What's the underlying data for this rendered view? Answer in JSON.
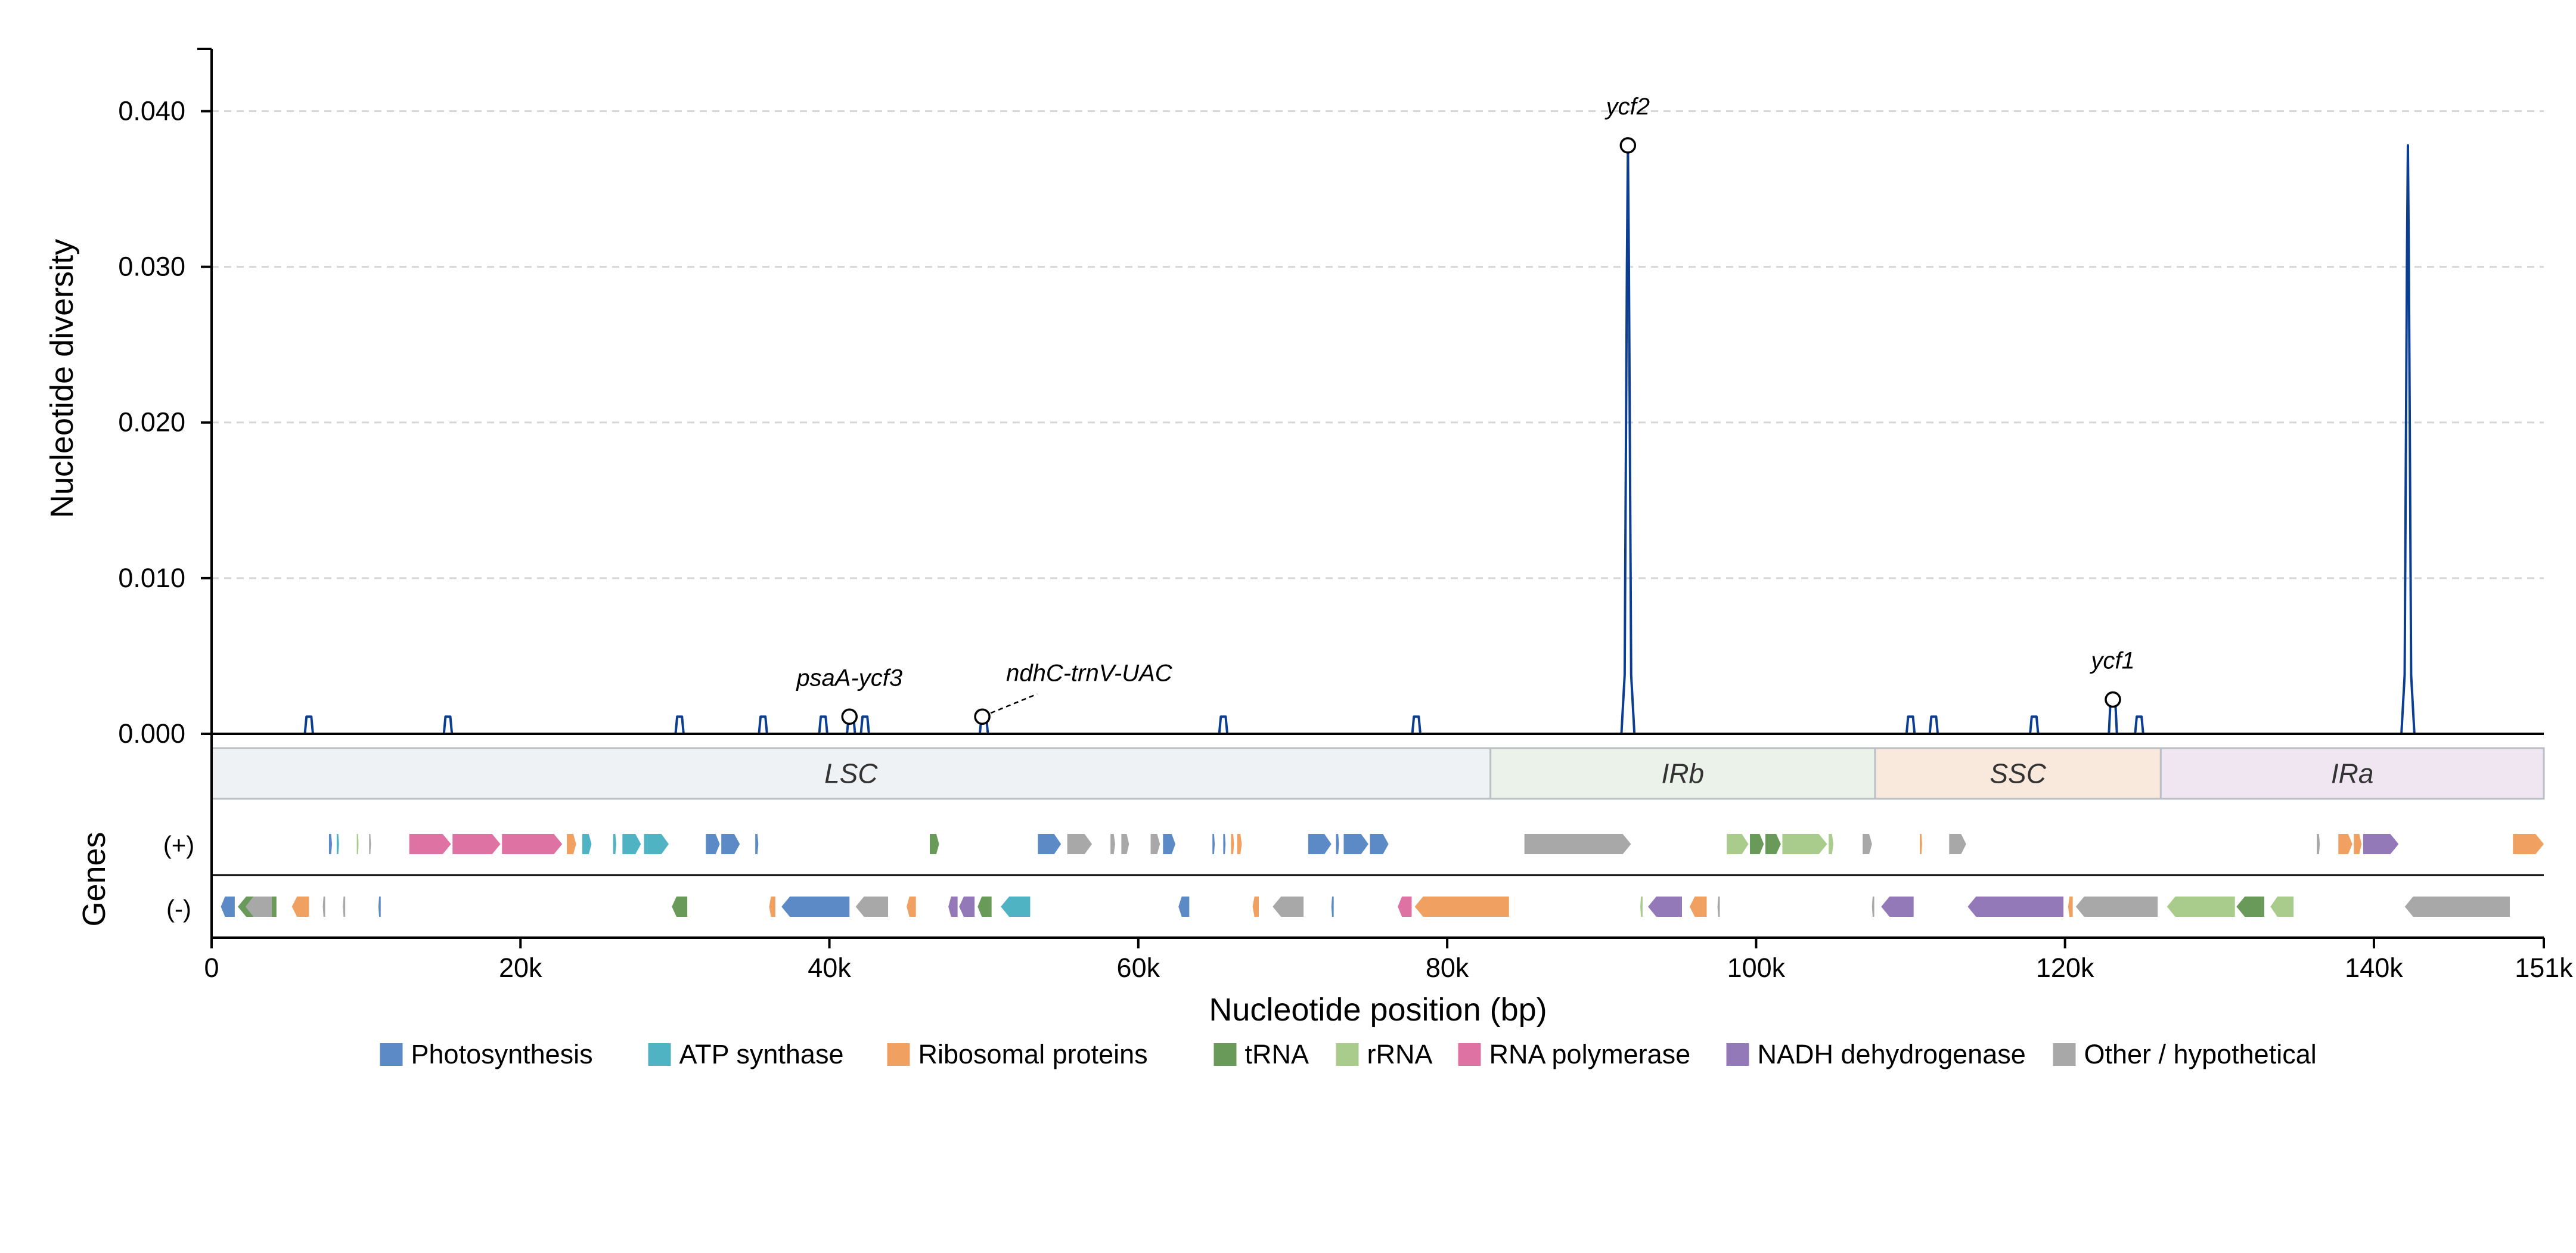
{
  "chart_data": {
    "type": "line",
    "xlabel": "Nucleotide position (bp)",
    "ylabel": "Nucleotide diversity",
    "genes_label": "Genes",
    "strand_labels": [
      "(+)",
      "(-)"
    ],
    "xlim": [
      0,
      151000
    ],
    "ylim": [
      0,
      0.044
    ],
    "x_ticks": [
      {
        "value": 0,
        "label": "0"
      },
      {
        "value": 20000,
        "label": "20k"
      },
      {
        "value": 40000,
        "label": "40k"
      },
      {
        "value": 60000,
        "label": "60k"
      },
      {
        "value": 80000,
        "label": "80k"
      },
      {
        "value": 100000,
        "label": "100k"
      },
      {
        "value": 120000,
        "label": "120k"
      },
      {
        "value": 140000,
        "label": "140k"
      },
      {
        "value": 151000,
        "label": "151k"
      }
    ],
    "y_ticks": [
      {
        "value": 0.0,
        "label": "0.000"
      },
      {
        "value": 0.01,
        "label": "0.010"
      },
      {
        "value": 0.02,
        "label": "0.020"
      },
      {
        "value": 0.03,
        "label": "0.030"
      },
      {
        "value": 0.04,
        "label": "0.040"
      }
    ],
    "grid": "y-dashed",
    "series": [
      {
        "color": "#0b3d91",
        "peaks": [
          {
            "x": 6300,
            "y": 0.0011
          },
          {
            "x": 15300,
            "y": 0.0011
          },
          {
            "x": 30300,
            "y": 0.0011
          },
          {
            "x": 35700,
            "y": 0.0011
          },
          {
            "x": 39600,
            "y": 0.0011
          },
          {
            "x": 41400,
            "y": 0.0011
          },
          {
            "x": 42300,
            "y": 0.0011
          },
          {
            "x": 50000,
            "y": 0.0011
          },
          {
            "x": 65500,
            "y": 0.0011
          },
          {
            "x": 78000,
            "y": 0.0011
          },
          {
            "x": 91700,
            "y": 0.0378
          },
          {
            "x": 110000,
            "y": 0.0011
          },
          {
            "x": 111500,
            "y": 0.0011
          },
          {
            "x": 118000,
            "y": 0.0011
          },
          {
            "x": 123100,
            "y": 0.0021
          },
          {
            "x": 124800,
            "y": 0.0011
          },
          {
            "x": 142200,
            "y": 0.0378
          }
        ]
      }
    ],
    "annotations": [
      {
        "label": "ycf2",
        "x": 91700,
        "y": 0.0378
      },
      {
        "label": "psaA-ycf3",
        "x": 41300,
        "y": 0.0011
      },
      {
        "label": "ndhC-trnV-UAC",
        "x": 49900,
        "y": 0.0011
      },
      {
        "label": "ycf1",
        "x": 123100,
        "y": 0.0022
      }
    ],
    "regions": [
      {
        "label": "LSC",
        "start": 0,
        "end": 82800,
        "color": "#eef2f5"
      },
      {
        "label": "IRb",
        "start": 82800,
        "end": 107700,
        "color": "#ebf2ea"
      },
      {
        "label": "SSC",
        "start": 107700,
        "end": 126200,
        "color": "#f8e9dc"
      },
      {
        "label": "IRa",
        "start": 126200,
        "end": 151000,
        "color": "#efe6f1"
      }
    ],
    "gene_categories": [
      {
        "key": "photo",
        "label": "Photosynthesis",
        "color": "#5b8ac6"
      },
      {
        "key": "atp",
        "label": "ATP synthase",
        "color": "#4fb3c4"
      },
      {
        "key": "ribo",
        "label": "Ribosomal proteins",
        "color": "#f0a060"
      },
      {
        "key": "trna",
        "label": "tRNA",
        "color": "#6a9a5a"
      },
      {
        "key": "rrna",
        "label": "rRNA",
        "color": "#a9cc8d"
      },
      {
        "key": "rnapol",
        "label": "RNA polymerase",
        "color": "#de72a3"
      },
      {
        "key": "ndh",
        "label": "NADH dehydrogenase",
        "color": "#9479b9"
      },
      {
        "key": "other",
        "label": "Other / hypothetical",
        "color": "#a8a8a8"
      }
    ],
    "genes_plus": [
      {
        "s": 7600,
        "e": 7800,
        "c": "photo"
      },
      {
        "s": 8100,
        "e": 8250,
        "c": "atp"
      },
      {
        "s": 9400,
        "e": 9500,
        "c": "rrna"
      },
      {
        "s": 10200,
        "e": 10300,
        "c": "other"
      },
      {
        "s": 12800,
        "e": 15500,
        "c": "rnapol"
      },
      {
        "s": 15600,
        "e": 18700,
        "c": "rnapol"
      },
      {
        "s": 18800,
        "e": 22700,
        "c": "rnapol"
      },
      {
        "s": 23000,
        "e": 23600,
        "c": "ribo"
      },
      {
        "s": 24000,
        "e": 24600,
        "c": "atp"
      },
      {
        "s": 26000,
        "e": 26200,
        "c": "atp"
      },
      {
        "s": 26600,
        "e": 27800,
        "c": "atp"
      },
      {
        "s": 28000,
        "e": 29600,
        "c": "atp"
      },
      {
        "s": 32000,
        "e": 32900,
        "c": "photo"
      },
      {
        "s": 33000,
        "e": 34200,
        "c": "photo"
      },
      {
        "s": 35200,
        "e": 35400,
        "c": "photo"
      },
      {
        "s": 46500,
        "e": 47100,
        "c": "trna"
      },
      {
        "s": 53500,
        "e": 55000,
        "c": "photo"
      },
      {
        "s": 55400,
        "e": 57000,
        "c": "other"
      },
      {
        "s": 58200,
        "e": 58500,
        "c": "other"
      },
      {
        "s": 58900,
        "e": 59400,
        "c": "other"
      },
      {
        "s": 60800,
        "e": 61400,
        "c": "other"
      },
      {
        "s": 61600,
        "e": 62400,
        "c": "photo"
      },
      {
        "s": 64800,
        "e": 64950,
        "c": "photo"
      },
      {
        "s": 65500,
        "e": 65650,
        "c": "photo"
      },
      {
        "s": 66000,
        "e": 66200,
        "c": "ribo"
      },
      {
        "s": 66400,
        "e": 66700,
        "c": "ribo"
      },
      {
        "s": 71000,
        "e": 72500,
        "c": "photo"
      },
      {
        "s": 72800,
        "e": 73000,
        "c": "photo"
      },
      {
        "s": 73300,
        "e": 74900,
        "c": "photo"
      },
      {
        "s": 75000,
        "e": 76200,
        "c": "photo"
      },
      {
        "s": 85000,
        "e": 91900,
        "c": "other"
      },
      {
        "s": 98100,
        "e": 99500,
        "c": "rrna"
      },
      {
        "s": 99600,
        "e": 100500,
        "c": "trna"
      },
      {
        "s": 100600,
        "e": 101600,
        "c": "trna"
      },
      {
        "s": 101700,
        "e": 104600,
        "c": "rrna"
      },
      {
        "s": 104700,
        "e": 105000,
        "c": "rrna"
      },
      {
        "s": 106900,
        "e": 107500,
        "c": "other"
      },
      {
        "s": 110600,
        "e": 110750,
        "c": "ribo"
      },
      {
        "s": 112500,
        "e": 113600,
        "c": "other"
      },
      {
        "s": 136300,
        "e": 136500,
        "c": "other"
      },
      {
        "s": 137700,
        "e": 138600,
        "c": "ribo"
      },
      {
        "s": 138700,
        "e": 139200,
        "c": "ribo"
      },
      {
        "s": 139300,
        "e": 141600,
        "c": "ndh"
      },
      {
        "s": 149000,
        "e": 151000,
        "c": "ribo"
      }
    ],
    "genes_minus": [
      {
        "s": 600,
        "e": 1500,
        "c": "photo"
      },
      {
        "s": 1700,
        "e": 4200,
        "c": "trna"
      },
      {
        "s": 2200,
        "e": 3900,
        "c": "other"
      },
      {
        "s": 5200,
        "e": 6300,
        "c": "ribo"
      },
      {
        "s": 7200,
        "e": 7350,
        "c": "other"
      },
      {
        "s": 8500,
        "e": 8650,
        "c": "other"
      },
      {
        "s": 10800,
        "e": 10950,
        "c": "photo"
      },
      {
        "s": 29800,
        "e": 30800,
        "c": "trna"
      },
      {
        "s": 36100,
        "e": 36500,
        "c": "ribo"
      },
      {
        "s": 36900,
        "e": 41300,
        "c": "photo"
      },
      {
        "s": 41700,
        "e": 43800,
        "c": "other"
      },
      {
        "s": 45000,
        "e": 45600,
        "c": "ribo"
      },
      {
        "s": 47700,
        "e": 48300,
        "c": "ndh"
      },
      {
        "s": 48400,
        "e": 49400,
        "c": "ndh"
      },
      {
        "s": 49600,
        "e": 50500,
        "c": "trna"
      },
      {
        "s": 51100,
        "e": 53000,
        "c": "atp"
      },
      {
        "s": 62600,
        "e": 63300,
        "c": "photo"
      },
      {
        "s": 67400,
        "e": 67800,
        "c": "ribo"
      },
      {
        "s": 68700,
        "e": 70700,
        "c": "other"
      },
      {
        "s": 72500,
        "e": 72650,
        "c": "photo"
      },
      {
        "s": 76800,
        "e": 77700,
        "c": "rnapol"
      },
      {
        "s": 77900,
        "e": 84000,
        "c": "ribo"
      },
      {
        "s": 92500,
        "e": 92650,
        "c": "rrna"
      },
      {
        "s": 93000,
        "e": 95200,
        "c": "ndh"
      },
      {
        "s": 95700,
        "e": 96800,
        "c": "ribo"
      },
      {
        "s": 97500,
        "e": 97650,
        "c": "other"
      },
      {
        "s": 107500,
        "e": 107650,
        "c": "other"
      },
      {
        "s": 108100,
        "e": 110200,
        "c": "ndh"
      },
      {
        "s": 113700,
        "e": 119900,
        "c": "ndh"
      },
      {
        "s": 120200,
        "e": 120500,
        "c": "ribo"
      },
      {
        "s": 120700,
        "e": 126000,
        "c": "other"
      },
      {
        "s": 126600,
        "e": 131000,
        "c": "rrna"
      },
      {
        "s": 131100,
        "e": 132900,
        "c": "trna"
      },
      {
        "s": 133300,
        "e": 134800,
        "c": "rrna"
      },
      {
        "s": 142000,
        "e": 148800,
        "c": "other"
      }
    ]
  }
}
